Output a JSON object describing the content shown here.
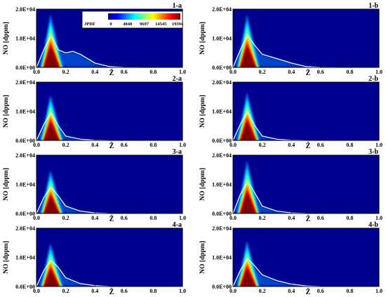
{
  "colors": {
    "background": "#00008f",
    "jet_stops": [
      "#00007f",
      "#0000ff",
      "#007fff",
      "#00ffff",
      "#7fff7f",
      "#ffff00",
      "#ff7f00",
      "#ff0000",
      "#7f0000"
    ],
    "mean_line": "#ffffff",
    "axis": "#000000"
  },
  "chart_data": [
    {
      "panel": "1-a",
      "type": "heatmap",
      "xlabel": "Z̃",
      "ylabel": "NO [dppm]",
      "xlim": [
        0.0,
        1.0
      ],
      "ylim": [
        0.0,
        20000
      ],
      "xticks": [
        "0.0",
        "0.2",
        "0.4",
        "0.6",
        "0.8",
        "1.0"
      ],
      "yticks": [
        "0.0E+00",
        "1.0E+04",
        "2.0E+04"
      ],
      "has_colorbar": true,
      "mean_curve": {
        "x": [
          0.0,
          0.05,
          0.1,
          0.15,
          0.2,
          0.25,
          0.3,
          0.4,
          0.5,
          0.6,
          0.7
        ],
        "y": [
          0,
          6000,
          11000,
          6000,
          5000,
          5500,
          4500,
          1500,
          300,
          50,
          0
        ]
      }
    },
    {
      "panel": "1-b",
      "type": "heatmap",
      "xlabel": "Z̃",
      "ylabel": "NO [dppm]",
      "xlim": [
        0.0,
        1.0
      ],
      "ylim": [
        0.0,
        20000
      ],
      "xticks": [
        "0.0",
        "0.2",
        "0.4",
        "0.6",
        "0.8",
        "1.0"
      ],
      "yticks": [
        "0.0E+00",
        "1.0E+04",
        "2.0E+04"
      ],
      "mean_curve": {
        "x": [
          0.0,
          0.05,
          0.1,
          0.15,
          0.2,
          0.3,
          0.4,
          0.5,
          0.6,
          0.7
        ],
        "y": [
          0,
          6000,
          11000,
          7500,
          4500,
          3000,
          1500,
          300,
          50,
          0
        ]
      }
    },
    {
      "panel": "2-a",
      "type": "heatmap",
      "xlabel": "Z̃",
      "ylabel": "NO [dppm]",
      "xlim": [
        0.0,
        1.0
      ],
      "ylim": [
        0.0,
        20000
      ],
      "xticks": [
        "0.0",
        "0.2",
        "0.4",
        "0.6",
        "0.8",
        "1.0"
      ],
      "yticks": [
        "0.0E+00",
        "1.0E+04",
        "2.0E+04"
      ],
      "mean_curve": {
        "x": [
          0.0,
          0.05,
          0.1,
          0.15,
          0.2,
          0.3,
          0.4,
          0.5
        ],
        "y": [
          0,
          5500,
          9500,
          5000,
          1500,
          400,
          100,
          0
        ]
      }
    },
    {
      "panel": "2-b",
      "type": "heatmap",
      "xlabel": "Z̃",
      "ylabel": "NO [dppm]",
      "xlim": [
        0.0,
        1.0
      ],
      "ylim": [
        0.0,
        20000
      ],
      "xticks": [
        "0.0",
        "0.2",
        "0.4",
        "0.6",
        "0.8",
        "1.0"
      ],
      "yticks": [
        "0.0E+00",
        "1.0E+04",
        "2.0E+04"
      ],
      "mean_curve": {
        "x": [
          0.0,
          0.05,
          0.1,
          0.15,
          0.2,
          0.3,
          0.4,
          0.5
        ],
        "y": [
          0,
          5500,
          10000,
          5000,
          1500,
          400,
          100,
          0
        ]
      }
    },
    {
      "panel": "3-a",
      "type": "heatmap",
      "xlabel": "Z̃",
      "ylabel": "NO [dppm]",
      "xlim": [
        0.0,
        1.0
      ],
      "ylim": [
        0.0,
        20000
      ],
      "xticks": [
        "0.0",
        "0.2",
        "0.4",
        "0.6",
        "0.8",
        "1.0"
      ],
      "yticks": [
        "0.0E+00",
        "1.0E+04",
        "2.0E+04"
      ],
      "mean_curve": {
        "x": [
          0.0,
          0.05,
          0.1,
          0.15,
          0.2,
          0.3,
          0.4,
          0.5
        ],
        "y": [
          0,
          5500,
          9000,
          6000,
          2500,
          800,
          200,
          0
        ]
      }
    },
    {
      "panel": "3-b",
      "type": "heatmap",
      "xlabel": "Z̃",
      "ylabel": "NO [dppm]",
      "xlim": [
        0.0,
        1.0
      ],
      "ylim": [
        0.0,
        20000
      ],
      "xticks": [
        "0.0",
        "0.2",
        "0.4",
        "0.6",
        "0.8",
        "1.0"
      ],
      "yticks": [
        "0.0E+00",
        "1.0E+04",
        "2.0E+04"
      ],
      "mean_curve": {
        "x": [
          0.0,
          0.05,
          0.1,
          0.15,
          0.2,
          0.3,
          0.4,
          0.5
        ],
        "y": [
          0,
          6500,
          11000,
          7000,
          2500,
          800,
          200,
          0
        ]
      }
    },
    {
      "panel": "4-a",
      "type": "heatmap",
      "xlabel": "Z̃",
      "ylabel": "NO [dppm]",
      "xlim": [
        0.0,
        1.0
      ],
      "ylim": [
        0.0,
        20000
      ],
      "xticks": [
        "0.0",
        "0.2",
        "0.4",
        "0.6",
        "0.8",
        "1.0"
      ],
      "yticks": [
        "0.0E+00",
        "1.0E+04",
        "2.0E+04"
      ],
      "mean_curve": {
        "x": [
          0.0,
          0.05,
          0.1,
          0.15,
          0.2,
          0.3,
          0.4,
          0.5
        ],
        "y": [
          0,
          5500,
          9000,
          6500,
          3000,
          1000,
          300,
          0
        ]
      }
    },
    {
      "panel": "4-b",
      "type": "heatmap",
      "xlabel": "Z̃",
      "ylabel": "NO [dppm]",
      "xlim": [
        0.0,
        1.0
      ],
      "ylim": [
        0.0,
        20000
      ],
      "xticks": [
        "0.0",
        "0.2",
        "0.4",
        "0.6",
        "0.8",
        "1.0"
      ],
      "yticks": [
        "0.0E+00",
        "1.0E+04",
        "2.0E+04"
      ],
      "mean_curve": {
        "x": [
          0.0,
          0.05,
          0.1,
          0.15,
          0.2,
          0.3,
          0.4,
          0.5,
          0.6
        ],
        "y": [
          0,
          5500,
          9500,
          7000,
          4000,
          2000,
          800,
          200,
          0
        ]
      }
    }
  ],
  "colorbar": {
    "label": "JPDF",
    "ticks": [
      "0",
      "4848",
      "9697",
      "14545",
      "19394"
    ],
    "values": [
      0,
      4848,
      9697,
      14545,
      19394
    ]
  }
}
